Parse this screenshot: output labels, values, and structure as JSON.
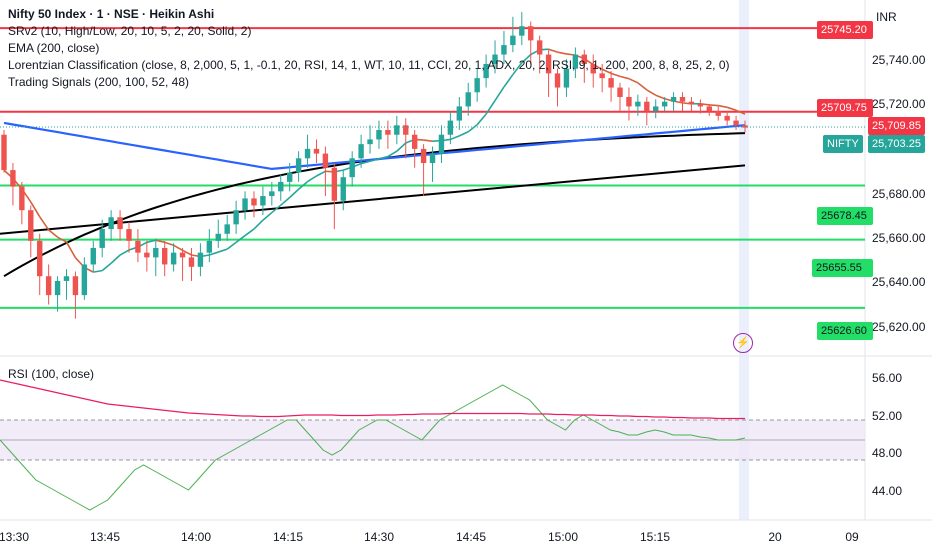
{
  "legend": {
    "title": "Nifty 50 Index · 1 · NSE · Heikin Ashi",
    "ind1": "SRv2 (10, High/Low, 20, 10, 5, 2, 20, Solid, 2)",
    "ind2": "EMA (200, close)",
    "ind3": "Lorentzian Classification (close, 8, 2,000, 5, 1, -0.1, 20, RSI, 14, 1, WT, 10, 11, CCI, 20, 1, ADX, 20, 2, RSI, 9, 1, 200, 200, 8, 8, 25, 2, 0)",
    "ind4": "Trading Signals (200, 100, 52, 48)"
  },
  "rsi_legend": "RSI (100, close)",
  "currency": "INR",
  "price_axis": [
    "25,740.00",
    "25,720.00",
    "25,680.00",
    "25,660.00",
    "25,640.00",
    "25,620.00"
  ],
  "rsi_axis": [
    "56.00",
    "52.00",
    "48.00",
    "44.00"
  ],
  "time_axis": [
    "13:30",
    "13:45",
    "14:00",
    "14:15",
    "14:30",
    "14:45",
    "15:00",
    "15:15",
    "20",
    "09"
  ],
  "tags": {
    "sr1": "25745.20",
    "sr2": "25709.75",
    "last": "25,709.85",
    "symbol": "NIFTY",
    "nifty_price": "25,703.25",
    "sr3": "25678.45",
    "sr4": "25655.55",
    "sr5": "25626.60"
  },
  "colors": {
    "up": "#26a69a",
    "down": "#ef5350",
    "resistance": "#f23645",
    "support": "#22dd66",
    "ema": "#000000",
    "blue_line": "#2962ff",
    "rsi": "#4caf50",
    "rsi_signal": "#e91e63"
  },
  "chart_data": {
    "type": "candlestick",
    "price_range": [
      25610,
      25755
    ],
    "support_resistance": [
      25745.2,
      25709.75,
      25678.45,
      25655.55,
      25626.6
    ],
    "rsi_range": [
      42,
      58
    ],
    "rsi_band": [
      48,
      52
    ],
    "rsi_midline": 50,
    "candles": [
      [
        25700,
        25685,
        25702,
        25684
      ],
      [
        25685,
        25678,
        25688,
        25670
      ],
      [
        25678,
        25668,
        25680,
        25662
      ],
      [
        25668,
        25655,
        25670,
        25648
      ],
      [
        25655,
        25640,
        25658,
        25632
      ],
      [
        25640,
        25632,
        25645,
        25628
      ],
      [
        25632,
        25638,
        25640,
        25625
      ],
      [
        25638,
        25640,
        25643,
        25630
      ],
      [
        25640,
        25632,
        25642,
        25622
      ],
      [
        25632,
        25645,
        25648,
        25630
      ],
      [
        25645,
        25652,
        25655,
        25642
      ],
      [
        25652,
        25660,
        25664,
        25648
      ],
      [
        25660,
        25665,
        25668,
        25655
      ],
      [
        25665,
        25660,
        25668,
        25655
      ],
      [
        25660,
        25655,
        25663,
        25650
      ],
      [
        25655,
        25650,
        25660,
        25646
      ],
      [
        25650,
        25648,
        25655,
        25642
      ],
      [
        25648,
        25652,
        25656,
        25640
      ],
      [
        25652,
        25645,
        25655,
        25640
      ],
      [
        25645,
        25650,
        25654,
        25642
      ],
      [
        25650,
        25648,
        25652,
        25638
      ],
      [
        25648,
        25644,
        25652,
        25638
      ],
      [
        25644,
        25650,
        25654,
        25640
      ],
      [
        25650,
        25655,
        25660,
        25646
      ],
      [
        25655,
        25658,
        25664,
        25652
      ],
      [
        25658,
        25662,
        25666,
        25655
      ],
      [
        25662,
        25668,
        25672,
        25658
      ],
      [
        25668,
        25673,
        25676,
        25664
      ],
      [
        25673,
        25670,
        25676,
        25665
      ],
      [
        25670,
        25674,
        25678,
        25666
      ],
      [
        25674,
        25676,
        25680,
        25670
      ],
      [
        25676,
        25680,
        25683,
        25672
      ],
      [
        25680,
        25684,
        25688,
        25676
      ],
      [
        25684,
        25690,
        25693,
        25680
      ],
      [
        25690,
        25694,
        25700,
        25686
      ],
      [
        25694,
        25692,
        25698,
        25688
      ],
      [
        25692,
        25686,
        25695,
        25674
      ],
      [
        25686,
        25672,
        25688,
        25660
      ],
      [
        25672,
        25682,
        25685,
        25668
      ],
      [
        25682,
        25690,
        25693,
        25678
      ],
      [
        25690,
        25696,
        25700,
        25686
      ],
      [
        25696,
        25698,
        25704,
        25692
      ],
      [
        25698,
        25702,
        25706,
        25694
      ],
      [
        25702,
        25700,
        25706,
        25694
      ],
      [
        25700,
        25704,
        25708,
        25696
      ],
      [
        25704,
        25700,
        25707,
        25690
      ],
      [
        25700,
        25694,
        25702,
        25686
      ],
      [
        25694,
        25688,
        25696,
        25674
      ],
      [
        25688,
        25692,
        25695,
        25680
      ],
      [
        25692,
        25700,
        25704,
        25688
      ],
      [
        25700,
        25706,
        25710,
        25696
      ],
      [
        25706,
        25712,
        25716,
        25702
      ],
      [
        25712,
        25718,
        25722,
        25708
      ],
      [
        25718,
        25724,
        25728,
        25714
      ],
      [
        25724,
        25730,
        25734,
        25720
      ],
      [
        25730,
        25734,
        25740,
        25726
      ],
      [
        25734,
        25738,
        25744,
        25730
      ],
      [
        25738,
        25742,
        25750,
        25735
      ],
      [
        25742,
        25746,
        25752,
        25738
      ],
      [
        25746,
        25740,
        25748,
        25730
      ],
      [
        25740,
        25734,
        25742,
        25726
      ],
      [
        25734,
        25726,
        25736,
        25716
      ],
      [
        25726,
        25720,
        25728,
        25712
      ],
      [
        25720,
        25728,
        25732,
        25716
      ],
      [
        25728,
        25734,
        25737,
        25724
      ],
      [
        25734,
        25730,
        25736,
        25722
      ],
      [
        25730,
        25726,
        25734,
        25720
      ],
      [
        25726,
        25724,
        25730,
        25718
      ],
      [
        25724,
        25720,
        25727,
        25714
      ],
      [
        25720,
        25716,
        25722,
        25710
      ],
      [
        25716,
        25712,
        25720,
        25706
      ],
      [
        25712,
        25714,
        25717,
        25708
      ],
      [
        25714,
        25710,
        25716,
        25704
      ],
      [
        25710,
        25712,
        25715,
        25707
      ],
      [
        25712,
        25714,
        25716,
        25710
      ],
      [
        25714,
        25716,
        25718,
        25710
      ],
      [
        25716,
        25714,
        25718,
        25710
      ],
      [
        25714,
        25713,
        25716,
        25710
      ],
      [
        25713,
        25712,
        25715,
        25709
      ],
      [
        25712,
        25710,
        25713,
        25708
      ],
      [
        25710,
        25708,
        25712,
        25706
      ],
      [
        25708,
        25706,
        25710,
        25704
      ],
      [
        25706,
        25704,
        25708,
        25702
      ],
      [
        25704,
        25703,
        25706,
        25701
      ]
    ],
    "rsi": [
      50,
      49,
      48,
      47,
      46,
      45.5,
      45,
      44.5,
      44,
      43.5,
      43,
      43.5,
      44,
      45,
      46,
      47,
      47.5,
      47,
      46.5,
      46,
      45.5,
      45,
      46,
      47,
      48,
      48.5,
      49,
      49.5,
      50,
      50.5,
      51,
      51.5,
      52,
      52,
      51,
      50,
      49,
      48.5,
      49,
      50,
      51,
      51.5,
      52,
      52,
      51.5,
      51,
      50.5,
      50,
      51,
      52,
      52.5,
      53,
      53.5,
      54,
      54.5,
      55,
      55.5,
      55,
      54.5,
      54,
      53,
      52,
      51.5,
      51,
      52,
      52.5,
      52,
      51.5,
      51,
      50.8,
      50.5,
      50.5,
      50.8,
      51,
      50.8,
      50.5,
      50.5,
      50.5,
      50.3,
      50.2,
      50,
      50,
      50,
      50.2
    ],
    "rsi_ma": [
      56,
      55.8,
      55.6,
      55.4,
      55.2,
      55,
      54.8,
      54.6,
      54.4,
      54.2,
      54,
      53.8,
      53.6,
      53.5,
      53.4,
      53.3,
      53.2,
      53.1,
      53,
      52.9,
      52.8,
      52.7,
      52.65,
      52.6,
      52.55,
      52.5,
      52.45,
      52.4,
      52.4,
      52.35,
      52.35,
      52.35,
      52.4,
      52.45,
      52.5,
      52.5,
      52.5,
      52.5,
      52.45,
      52.45,
      52.45,
      52.45,
      52.5,
      52.5,
      52.5,
      52.55,
      52.55,
      52.6,
      52.6,
      52.6,
      52.65,
      52.65,
      52.65,
      52.65,
      52.65,
      52.65,
      52.65,
      52.65,
      52.65,
      52.6,
      52.6,
      52.6,
      52.55,
      52.55,
      52.5,
      52.5,
      52.5,
      52.45,
      52.45,
      52.4,
      52.4,
      52.35,
      52.35,
      52.3,
      52.3,
      52.25,
      52.25,
      52.2,
      52.2,
      52.2,
      52.15,
      52.15,
      52.15,
      52.15
    ]
  }
}
